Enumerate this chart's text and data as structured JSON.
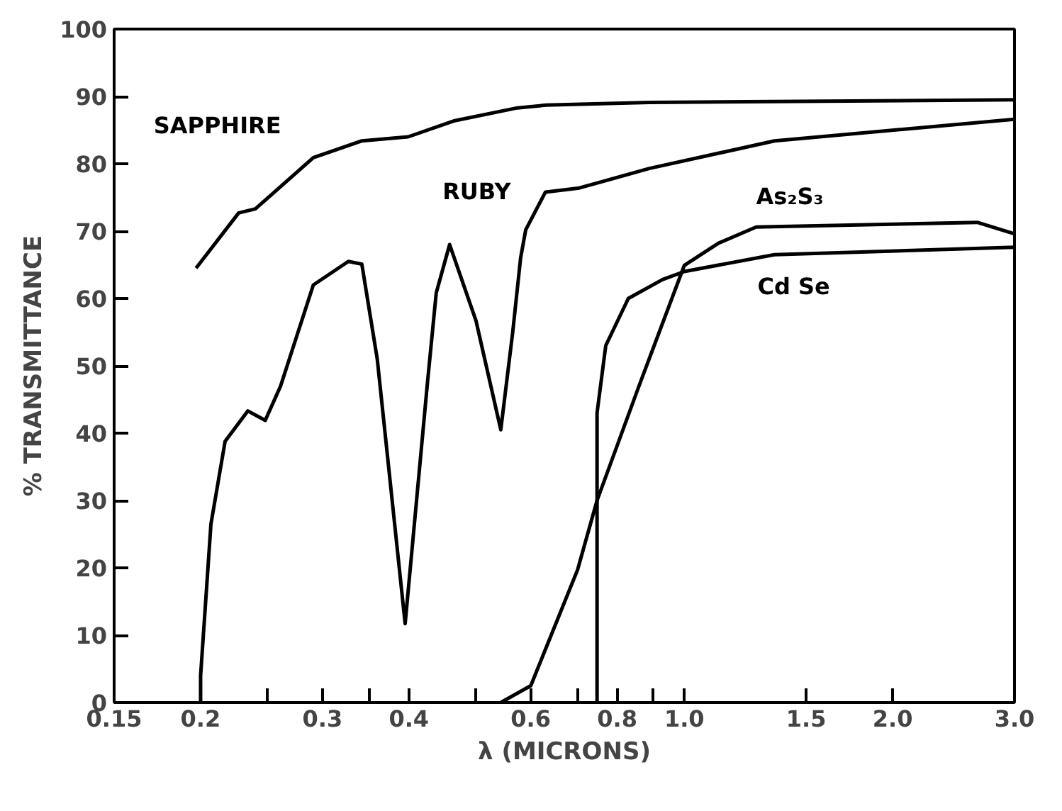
{
  "chart_data": {
    "type": "line",
    "xlabel": "λ (MICRONS)",
    "ylabel": "% TRANSMITTANCE",
    "log": "x",
    "grid": false,
    "marker": "none",
    "line_style": "solid",
    "xlim": [
      0.15,
      3.0
    ],
    "ylim": [
      0,
      100
    ],
    "xticks": [
      0.15,
      0.2,
      {
        "value": 0.25,
        "label": null
      },
      0.3,
      {
        "value": 0.35,
        "label": null
      },
      0.4,
      {
        "value": 0.5,
        "label": null
      },
      0.6,
      {
        "value": 0.7,
        "label": null
      },
      0.8,
      {
        "value": 0.9,
        "label": null
      },
      {
        "value": 1.0,
        "label": "1.0"
      },
      1.5,
      {
        "value": 2.0,
        "label": "2.0"
      },
      {
        "value": 3.0,
        "label": "3.0"
      }
    ],
    "yticks": [
      0,
      10,
      20,
      30,
      40,
      50,
      60,
      70,
      80,
      90,
      100
    ],
    "series": [
      {
        "name": "SAPPHIRE",
        "color": "#000000",
        "x": [
          0.197,
          0.227,
          0.24,
          0.291,
          0.342,
          0.399,
          0.466,
          0.574,
          0.631,
          0.89,
          3.0
        ],
        "values": [
          64.5,
          72.7,
          73.3,
          80.9,
          83.4,
          84,
          86.4,
          88.3,
          88.7,
          89.1,
          89.5
        ]
      },
      {
        "name": "RUBY",
        "color": "#000000",
        "x": [
          0.2,
          0.2,
          0.207,
          0.217,
          0.234,
          0.248,
          0.261,
          0.291,
          0.327,
          0.342,
          0.36,
          0.395,
          0.425,
          0.438,
          0.458,
          0.5,
          0.543,
          0.565,
          0.58,
          0.59,
          0.63,
          0.705,
          0.89,
          1.35,
          3.0
        ],
        "values": [
          0,
          4,
          26.5,
          38.8,
          43.3,
          41.9,
          47,
          62,
          65.5,
          65.1,
          51,
          11.7,
          47,
          60.8,
          68,
          56.7,
          40.5,
          55,
          66,
          70.2,
          75.8,
          76.4,
          79.3,
          83.4,
          86.6
        ]
      },
      {
        "name": "As₂S₃",
        "color": "#000000",
        "x": [
          0.543,
          0.6,
          0.701,
          0.748,
          0.86,
          1.0,
          1.12,
          1.27,
          2.65,
          3.0
        ],
        "values": [
          0,
          2.5,
          19.7,
          30,
          47,
          64.9,
          68.2,
          70.6,
          71.3,
          69.6
        ]
      },
      {
        "name": "Cd Se",
        "color": "#000000",
        "x": [
          0.748,
          0.748,
          0.77,
          0.83,
          0.93,
          1.0,
          1.35,
          3.0
        ],
        "values": [
          0,
          43,
          53,
          60,
          62.8,
          64,
          66.5,
          67.6
        ]
      }
    ]
  }
}
